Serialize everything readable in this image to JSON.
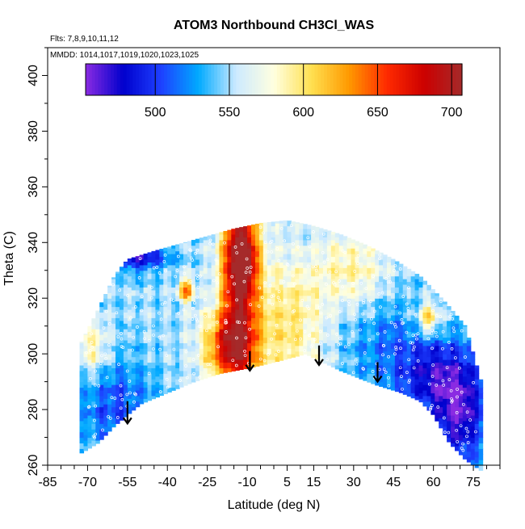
{
  "chart_data": {
    "type": "heatmap",
    "title": "ATOM3 Northbound CH3Cl_WAS",
    "flights_note": "Flts: 7,8,9,10,11,12",
    "dates_note": "MMDD: 1014,1017,1019,1020,1023,1025",
    "xlabel": "Latitude (deg N)",
    "ylabel": "Theta (C)",
    "xlim": [
      -85,
      85
    ],
    "ylim": [
      260,
      410
    ],
    "x_ticks": [
      -85,
      -70,
      -55,
      -40,
      -25,
      -10,
      5,
      15,
      30,
      45,
      60,
      75
    ],
    "x_tick_labels": [
      "-85",
      "-70",
      "-55",
      "-40",
      "-25",
      "-10",
      "5",
      "15",
      "30",
      "45",
      "60",
      "75"
    ],
    "y_ticks": [
      260,
      280,
      300,
      320,
      340,
      360,
      380,
      400
    ],
    "y_tick_labels": [
      "260",
      "280",
      "300",
      "320",
      "340",
      "360",
      "380",
      "400"
    ],
    "colorbar": {
      "range": [
        453,
        707
      ],
      "ticks": [
        500,
        550,
        600,
        650,
        700
      ],
      "tick_labels": [
        "500",
        "550",
        "600",
        "650",
        "700"
      ],
      "colors": [
        "#8a2be2",
        "#0000cd",
        "#1e40ff",
        "#00aaff",
        "#cdeaff",
        "#ffffe0",
        "#ffe050",
        "#ff9900",
        "#ff2a00",
        "#cc0000",
        "#a52a2a"
      ]
    },
    "grid": false,
    "field": {
      "lat_range": [
        -73,
        78
      ],
      "upper_boundary": [
        [
          -73,
          303
        ],
        [
          -66,
          316
        ],
        [
          -60,
          328
        ],
        [
          -55,
          334
        ],
        [
          -45,
          337
        ],
        [
          -30,
          341
        ],
        [
          -15,
          345
        ],
        [
          -5,
          347
        ],
        [
          5,
          348
        ],
        [
          15,
          346
        ],
        [
          25,
          343
        ],
        [
          35,
          339
        ],
        [
          45,
          334
        ],
        [
          55,
          328
        ],
        [
          65,
          318
        ],
        [
          72,
          310
        ],
        [
          78,
          290
        ]
      ],
      "lower_boundary": [
        [
          -73,
          264
        ],
        [
          -66,
          268
        ],
        [
          -60,
          274
        ],
        [
          -50,
          282
        ],
        [
          -40,
          286
        ],
        [
          -30,
          290
        ],
        [
          -20,
          293
        ],
        [
          -9,
          295
        ],
        [
          0,
          297
        ],
        [
          12,
          300
        ],
        [
          25,
          294
        ],
        [
          38,
          289
        ],
        [
          48,
          286
        ],
        [
          55,
          283
        ],
        [
          60,
          278
        ],
        [
          66,
          268
        ],
        [
          72,
          262
        ],
        [
          78,
          258
        ]
      ],
      "features": [
        {
          "lat": -13,
          "theta": 322,
          "value": 660,
          "lat_sigma": 5,
          "theta_sigma": 30
        },
        {
          "lat": -18,
          "theta": 303,
          "value": 635,
          "lat_sigma": 7,
          "theta_sigma": 9
        },
        {
          "lat": -12,
          "theta": 335,
          "value": 655,
          "lat_sigma": 4,
          "theta_sigma": 9
        },
        {
          "lat": -33,
          "theta": 323,
          "value": 640,
          "lat_sigma": 2,
          "theta_sigma": 3
        },
        {
          "lat": 5,
          "theta": 310,
          "value": 600,
          "lat_sigma": 10,
          "theta_sigma": 18
        },
        {
          "lat": -68,
          "theta": 302,
          "value": 595,
          "lat_sigma": 4,
          "theta_sigma": 7
        },
        {
          "lat": 58,
          "theta": 313,
          "value": 620,
          "lat_sigma": 3,
          "theta_sigma": 4
        },
        {
          "lat": 30,
          "theta": 330,
          "value": 590,
          "lat_sigma": 10,
          "theta_sigma": 10
        },
        {
          "lat": -52,
          "theta": 336,
          "value": 470,
          "lat_sigma": 8,
          "theta_sigma": 4
        },
        {
          "lat": 70,
          "theta": 278,
          "value": 472,
          "lat_sigma": 7,
          "theta_sigma": 14
        },
        {
          "lat": 60,
          "theta": 292,
          "value": 490,
          "lat_sigma": 10,
          "theta_sigma": 10
        },
        {
          "lat": -60,
          "theta": 282,
          "value": 505,
          "lat_sigma": 10,
          "theta_sigma": 12
        },
        {
          "lat": 42,
          "theta": 305,
          "value": 520,
          "lat_sigma": 12,
          "theta_sigma": 14
        }
      ],
      "background_value": 548
    },
    "arrows": [
      {
        "lat": -55,
        "theta_start": 283,
        "theta_end": 275
      },
      {
        "lat": -9,
        "theta_start": 301,
        "theta_end": 294
      },
      {
        "lat": 17,
        "theta_start": 303,
        "theta_end": 296
      },
      {
        "lat": 39,
        "theta_start": 297,
        "theta_end": 290
      }
    ]
  }
}
